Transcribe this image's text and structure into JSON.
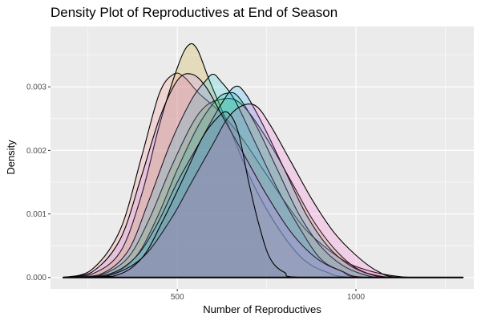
{
  "chart_data": {
    "type": "area",
    "title": "Density Plot of Reproductives at End of Season",
    "xlabel": "Number of Reproductives",
    "ylabel": "Density",
    "xlim": [
      145,
      1330
    ],
    "ylim": [
      -0.00018,
      0.00395
    ],
    "x_ticks": [
      500,
      1000
    ],
    "x_tick_labels": [
      "500",
      "1000"
    ],
    "y_ticks": [
      0.0,
      0.001,
      0.002,
      0.003
    ],
    "y_tick_labels": [
      "0.000",
      "0.001",
      "0.002",
      "0.003"
    ],
    "grid": true,
    "legend": "none",
    "background": "#ebebeb",
    "grid_color": "#ffffff",
    "series": [
      {
        "color": "#f8766d",
        "values": [
          [
            180,
            0
          ],
          [
            260,
            0.00012
          ],
          [
            340,
            0.00075
          ],
          [
            400,
            0.0019
          ],
          [
            450,
            0.0029
          ],
          [
            490,
            0.0032
          ],
          [
            520,
            0.00315
          ],
          [
            560,
            0.0029
          ],
          [
            620,
            0.0026
          ],
          [
            680,
            0.0022
          ],
          [
            740,
            0.0017
          ],
          [
            800,
            0.0012
          ],
          [
            860,
            0.00075
          ],
          [
            920,
            0.00045
          ],
          [
            980,
            0.00022
          ],
          [
            1040,
            0.0001
          ],
          [
            1100,
            3e-05
          ],
          [
            1160,
            0
          ],
          [
            1300,
            0
          ]
        ]
      },
      {
        "color": "#c49a00",
        "values": [
          [
            180,
            0
          ],
          [
            260,
            5e-05
          ],
          [
            340,
            0.0004
          ],
          [
            400,
            0.0013
          ],
          [
            450,
            0.0024
          ],
          [
            500,
            0.0033
          ],
          [
            530,
            0.00365
          ],
          [
            555,
            0.0036
          ],
          [
            590,
            0.0031
          ],
          [
            650,
            0.0023
          ],
          [
            710,
            0.0015
          ],
          [
            780,
            0.0008
          ],
          [
            850,
            0.0003
          ],
          [
            920,
            8e-05
          ],
          [
            1000,
            0
          ],
          [
            1300,
            0
          ]
        ]
      },
      {
        "color": "#7cae00",
        "values": [
          [
            180,
            0
          ],
          [
            280,
            3e-05
          ],
          [
            360,
            0.0003
          ],
          [
            420,
            0.0009
          ],
          [
            480,
            0.0017
          ],
          [
            540,
            0.0024
          ],
          [
            580,
            0.0027
          ],
          [
            620,
            0.0028
          ],
          [
            660,
            0.0028
          ],
          [
            700,
            0.0026
          ],
          [
            760,
            0.0021
          ],
          [
            820,
            0.0015
          ],
          [
            880,
            0.0009
          ],
          [
            940,
            0.00045
          ],
          [
            1000,
            0.00015
          ],
          [
            1060,
            3e-05
          ],
          [
            1130,
            0
          ],
          [
            1300,
            0
          ]
        ]
      },
      {
        "color": "#00be67",
        "values": [
          [
            180,
            0
          ],
          [
            300,
            3e-05
          ],
          [
            380,
            0.0003
          ],
          [
            440,
            0.0009
          ],
          [
            500,
            0.0017
          ],
          [
            560,
            0.0024
          ],
          [
            610,
            0.0028
          ],
          [
            640,
            0.0029
          ],
          [
            670,
            0.00285
          ],
          [
            720,
            0.0024
          ],
          [
            780,
            0.0017
          ],
          [
            840,
            0.001
          ],
          [
            900,
            0.0005
          ],
          [
            960,
            0.0002
          ],
          [
            1020,
            5e-05
          ],
          [
            1080,
            0
          ],
          [
            1300,
            0
          ]
        ]
      },
      {
        "color": "#00c4d2",
        "values": [
          [
            180,
            0
          ],
          [
            280,
            4e-05
          ],
          [
            360,
            0.0004
          ],
          [
            420,
            0.0012
          ],
          [
            480,
            0.0021
          ],
          [
            540,
            0.0028
          ],
          [
            580,
            0.0031
          ],
          [
            600,
            0.0032
          ],
          [
            620,
            0.0031
          ],
          [
            660,
            0.0028
          ],
          [
            720,
            0.0021
          ],
          [
            780,
            0.0014
          ],
          [
            840,
            0.0008
          ],
          [
            900,
            0.0003
          ],
          [
            960,
            0.0001
          ],
          [
            1020,
            0
          ],
          [
            1300,
            0
          ]
        ]
      },
      {
        "color": "#00a9ff",
        "values": [
          [
            180,
            0
          ],
          [
            300,
            4e-05
          ],
          [
            380,
            0.0003
          ],
          [
            440,
            0.0008
          ],
          [
            500,
            0.0015
          ],
          [
            560,
            0.0021
          ],
          [
            620,
            0.0027
          ],
          [
            660,
            0.003
          ],
          [
            690,
            0.0029
          ],
          [
            740,
            0.0024
          ],
          [
            800,
            0.0017
          ],
          [
            860,
            0.001
          ],
          [
            920,
            0.0005
          ],
          [
            980,
            0.0002
          ],
          [
            1040,
            5e-05
          ],
          [
            1100,
            0
          ],
          [
            1300,
            0
          ]
        ]
      },
      {
        "color": "#c77cff",
        "values": [
          [
            180,
            0
          ],
          [
            260,
            8e-05
          ],
          [
            340,
            0.0006
          ],
          [
            400,
            0.0016
          ],
          [
            450,
            0.0025
          ],
          [
            500,
            0.0031
          ],
          [
            540,
            0.0032
          ],
          [
            580,
            0.003
          ],
          [
            630,
            0.0025
          ],
          [
            690,
            0.0019
          ],
          [
            750,
            0.0013
          ],
          [
            820,
            0.0007
          ],
          [
            890,
            0.0003
          ],
          [
            960,
            0.0001
          ],
          [
            1030,
            0
          ],
          [
            1300,
            0
          ]
        ]
      },
      {
        "color": "#ff61cc",
        "values": [
          [
            180,
            0
          ],
          [
            300,
            2e-05
          ],
          [
            400,
            0.0003
          ],
          [
            480,
            0.0009
          ],
          [
            540,
            0.0015
          ],
          [
            600,
            0.0021
          ],
          [
            640,
            0.0025
          ],
          [
            680,
            0.0027
          ],
          [
            720,
            0.0027
          ],
          [
            760,
            0.0024
          ],
          [
            820,
            0.0018
          ],
          [
            880,
            0.0012
          ],
          [
            940,
            0.0007
          ],
          [
            1000,
            0.00035
          ],
          [
            1060,
            0.0001
          ],
          [
            1120,
            0
          ],
          [
            1300,
            0
          ]
        ]
      },
      {
        "color": "#6b7b99",
        "values": [
          [
            180,
            0
          ],
          [
            320,
            2e-05
          ],
          [
            400,
            0.0003
          ],
          [
            460,
            0.0009
          ],
          [
            520,
            0.0016
          ],
          [
            570,
            0.0022
          ],
          [
            610,
            0.0025
          ],
          [
            640,
            0.0026
          ],
          [
            670,
            0.0023
          ],
          [
            700,
            0.0015
          ],
          [
            730,
            0.0008
          ],
          [
            760,
            0.0003
          ],
          [
            800,
            8e-05
          ],
          [
            860,
            0
          ],
          [
            1300,
            0
          ]
        ]
      }
    ]
  }
}
